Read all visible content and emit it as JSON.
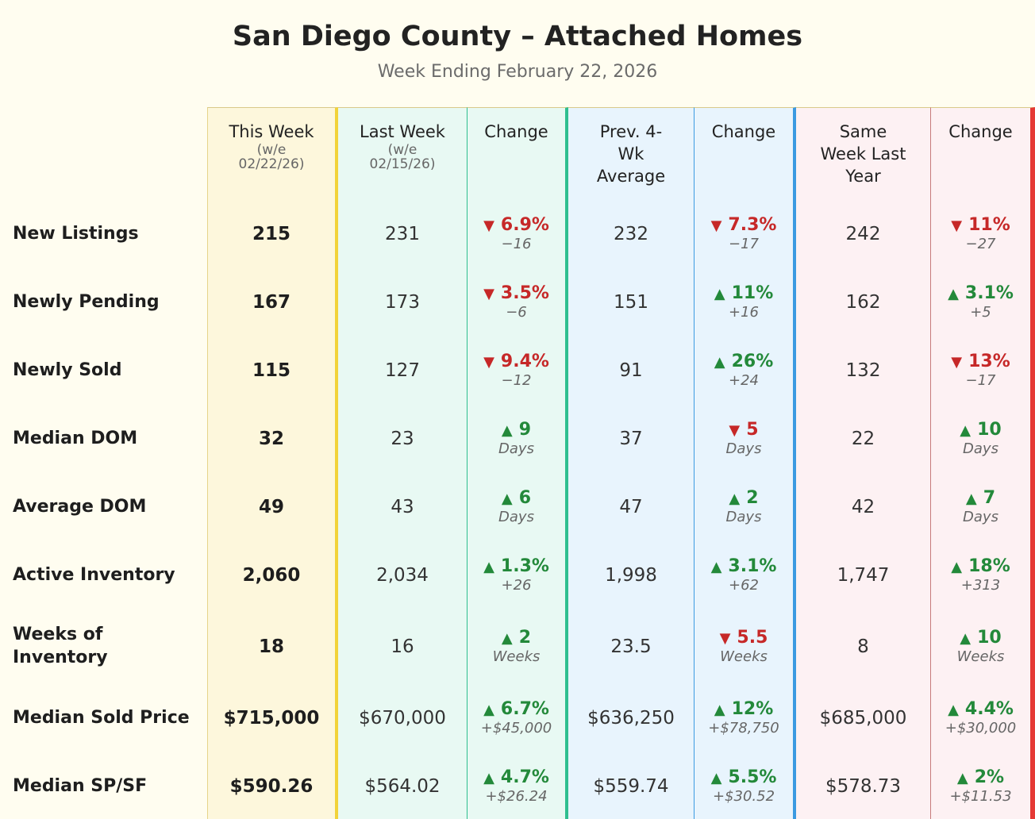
{
  "header": {
    "title": "San Diego County – Attached Homes",
    "subtitle": "Week Ending February 22, 2026"
  },
  "colors": {
    "this_week_bg": "#fdf7dc",
    "last_week_bg": "#e8f9f3",
    "avg_bg": "#e8f4fd",
    "last_year_bg": "#fdf1f3",
    "up": "#23893a",
    "down": "#c62828"
  },
  "columns": {
    "this_week": {
      "label": "This Week",
      "sub": "(w/e 02/22/26)"
    },
    "last_week": {
      "label": "Last Week",
      "sub": "(w/e 02/15/26)"
    },
    "change1": {
      "label": "Change"
    },
    "prev4": {
      "label": "Prev. 4-Wk Average"
    },
    "change2": {
      "label": "Change"
    },
    "last_year": {
      "label": "Same Week Last Year"
    },
    "change3": {
      "label": "Change"
    }
  },
  "rows": [
    {
      "label": "New Listings",
      "this_week": "215",
      "last_week": "231",
      "chg1": {
        "dir": "down",
        "arrow": "▼",
        "pct": "6.9%",
        "sub": "−16"
      },
      "prev4": "232",
      "chg2": {
        "dir": "down",
        "arrow": "▼",
        "pct": "7.3%",
        "sub": "−17"
      },
      "last_year": "242",
      "chg3": {
        "dir": "down",
        "arrow": "▼",
        "pct": "11%",
        "sub": "−27"
      }
    },
    {
      "label": "Newly Pending",
      "this_week": "167",
      "last_week": "173",
      "chg1": {
        "dir": "down",
        "arrow": "▼",
        "pct": "3.5%",
        "sub": "−6"
      },
      "prev4": "151",
      "chg2": {
        "dir": "up",
        "arrow": "▲",
        "pct": "11%",
        "sub": "+16"
      },
      "last_year": "162",
      "chg3": {
        "dir": "up",
        "arrow": "▲",
        "pct": "3.1%",
        "sub": "+5"
      }
    },
    {
      "label": "Newly Sold",
      "this_week": "115",
      "last_week": "127",
      "chg1": {
        "dir": "down",
        "arrow": "▼",
        "pct": "9.4%",
        "sub": "−12"
      },
      "prev4": "91",
      "chg2": {
        "dir": "up",
        "arrow": "▲",
        "pct": "26%",
        "sub": "+24"
      },
      "last_year": "132",
      "chg3": {
        "dir": "down",
        "arrow": "▼",
        "pct": "13%",
        "sub": "−17"
      }
    },
    {
      "label": "Median DOM",
      "this_week": "32",
      "last_week": "23",
      "chg1": {
        "dir": "up",
        "arrow": "▲",
        "pct": "9",
        "sub": "Days"
      },
      "prev4": "37",
      "chg2": {
        "dir": "down",
        "arrow": "▼",
        "pct": "5",
        "sub": "Days"
      },
      "last_year": "22",
      "chg3": {
        "dir": "up",
        "arrow": "▲",
        "pct": "10",
        "sub": "Days"
      }
    },
    {
      "label": "Average DOM",
      "this_week": "49",
      "last_week": "43",
      "chg1": {
        "dir": "up",
        "arrow": "▲",
        "pct": "6",
        "sub": "Days"
      },
      "prev4": "47",
      "chg2": {
        "dir": "up",
        "arrow": "▲",
        "pct": "2",
        "sub": "Days"
      },
      "last_year": "42",
      "chg3": {
        "dir": "up",
        "arrow": "▲",
        "pct": "7",
        "sub": "Days"
      }
    },
    {
      "label": "Active Inventory",
      "this_week": "2,060",
      "last_week": "2,034",
      "chg1": {
        "dir": "up",
        "arrow": "▲",
        "pct": "1.3%",
        "sub": "+26"
      },
      "prev4": "1,998",
      "chg2": {
        "dir": "up",
        "arrow": "▲",
        "pct": "3.1%",
        "sub": "+62"
      },
      "last_year": "1,747",
      "chg3": {
        "dir": "up",
        "arrow": "▲",
        "pct": "18%",
        "sub": "+313"
      }
    },
    {
      "label": "Weeks of Inventory",
      "this_week": "18",
      "last_week": "16",
      "chg1": {
        "dir": "up",
        "arrow": "▲",
        "pct": "2",
        "sub": "Weeks"
      },
      "prev4": "23.5",
      "chg2": {
        "dir": "down",
        "arrow": "▼",
        "pct": "5.5",
        "sub": "Weeks"
      },
      "last_year": "8",
      "chg3": {
        "dir": "up",
        "arrow": "▲",
        "pct": "10",
        "sub": "Weeks"
      }
    },
    {
      "label": "Median Sold Price",
      "this_week": "$715,000",
      "last_week": "$670,000",
      "chg1": {
        "dir": "up",
        "arrow": "▲",
        "pct": "6.7%",
        "sub": "+$45,000"
      },
      "prev4": "$636,250",
      "chg2": {
        "dir": "up",
        "arrow": "▲",
        "pct": "12%",
        "sub": "+$78,750"
      },
      "last_year": "$685,000",
      "chg3": {
        "dir": "up",
        "arrow": "▲",
        "pct": "4.4%",
        "sub": "+$30,000"
      }
    },
    {
      "label": "Median SP/SF",
      "this_week": "$590.26",
      "last_week": "$564.02",
      "chg1": {
        "dir": "up",
        "arrow": "▲",
        "pct": "4.7%",
        "sub": "+$26.24"
      },
      "prev4": "$559.74",
      "chg2": {
        "dir": "up",
        "arrow": "▲",
        "pct": "5.5%",
        "sub": "+$30.52"
      },
      "last_year": "$578.73",
      "chg3": {
        "dir": "up",
        "arrow": "▲",
        "pct": "2%",
        "sub": "+$11.53"
      }
    }
  ]
}
